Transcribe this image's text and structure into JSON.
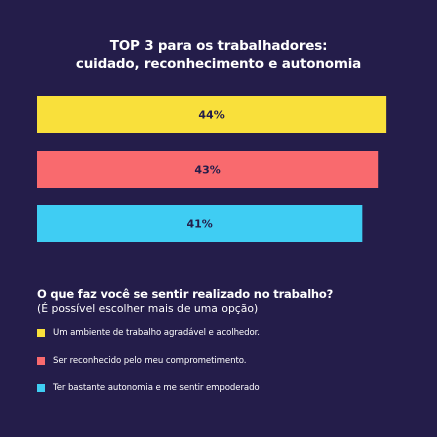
{
  "chart_data": {
    "type": "bar",
    "orientation": "horizontal",
    "title_lines": [
      "TOP 3 para os trabalhadores:",
      "cuidado, reconhecimento e autonomia"
    ],
    "categories": [
      "Um ambiente de trabalho agradável e acolhedor.",
      "Ser reconhecido pelo meu comprometimento.",
      "Ter bastante autonomia e me sentir empoderado"
    ],
    "values": [
      44,
      43,
      41
    ],
    "data_labels": [
      "44%",
      "43%",
      "41%"
    ],
    "colors": [
      "#f9e03b",
      "#f96a6e",
      "#3fcdf3"
    ],
    "label_color": "#241d4a",
    "xlim": [
      0,
      46
    ],
    "grid": false,
    "legend_position": "bottom-left"
  },
  "question": {
    "title": "O que faz você se sentir realizado no trabalho?",
    "subtitle": "(É possível escolher mais de uma opção)"
  },
  "background": "#241d4a"
}
